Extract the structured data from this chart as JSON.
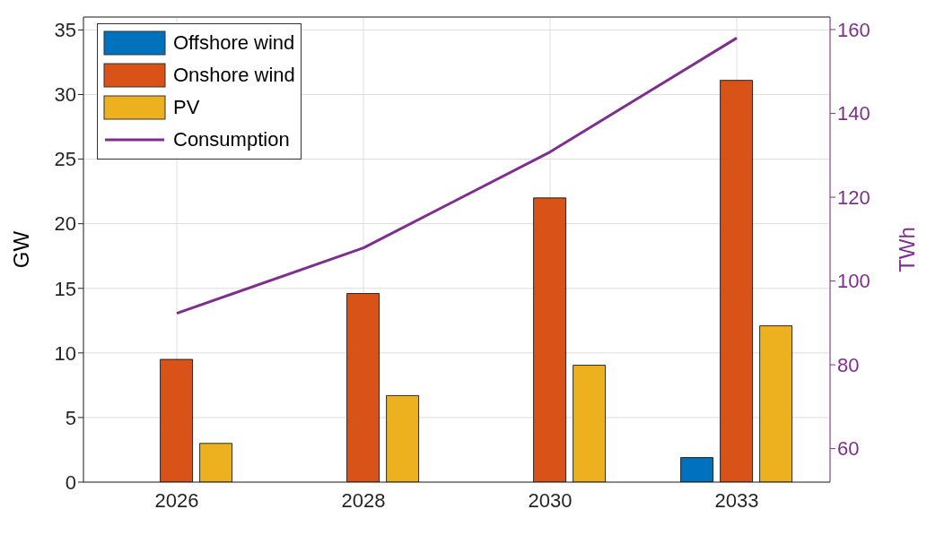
{
  "chart_data": {
    "type": "bar",
    "categories": [
      "2026",
      "2028",
      "2030",
      "2033"
    ],
    "series": [
      {
        "name": "Offshore wind",
        "color": "#0072bd",
        "values": [
          0,
          0,
          0,
          1.9
        ]
      },
      {
        "name": "Onshore wind",
        "color": "#d95319",
        "values": [
          9.5,
          14.6,
          22.0,
          31.1
        ]
      },
      {
        "name": "PV",
        "color": "#edb120",
        "values": [
          3.0,
          6.7,
          9.05,
          12.1
        ]
      },
      {
        "name": "Consumption",
        "type": "line",
        "axis": "y2",
        "color": "#7e2f8e",
        "values": [
          92.3,
          107.9,
          130.8,
          158.0
        ]
      }
    ],
    "ylabel": "GW",
    "y2label": "TWh",
    "ylim": [
      0,
      36
    ],
    "yticks": [
      0,
      5,
      10,
      15,
      20,
      25,
      30,
      35
    ],
    "y2lim": [
      52,
      163
    ],
    "y2ticks": [
      60,
      80,
      100,
      120,
      140,
      160
    ],
    "grid": true,
    "legend": "top left",
    "marker": "none"
  }
}
